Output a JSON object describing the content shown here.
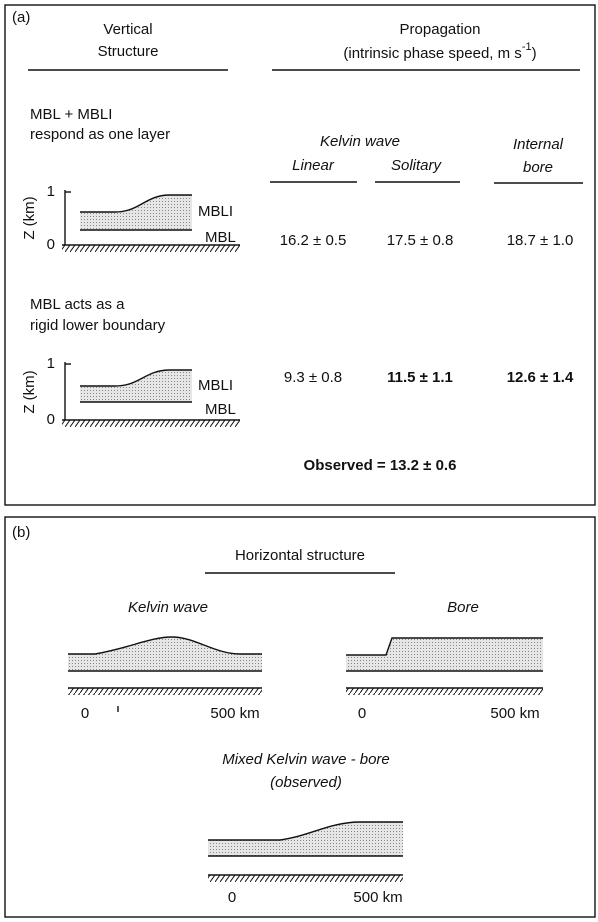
{
  "panel_a": {
    "label": "(a)",
    "vertical_structure": [
      "Vertical",
      "Structure"
    ],
    "propagation": {
      "title": "Propagation",
      "subtitle": "(intrinsic phase speed, m s",
      "exponent": "-1",
      "close": ")"
    },
    "column_headers": {
      "kelvin_wave": "Kelvin wave",
      "linear": "Linear",
      "solitary": "Solitary",
      "internal_bore": [
        "Internal",
        "bore"
      ]
    },
    "cases": [
      {
        "description": [
          "MBL + MBLI",
          "respond as one layer"
        ],
        "axis_label": "Z (km)",
        "ticks": [
          "1",
          "0"
        ],
        "layers": [
          "MBLI",
          "MBL"
        ],
        "speeds": [
          "16.2 ± 0.5",
          "17.5 ± 0.8",
          "18.7 ± 1.0"
        ]
      },
      {
        "description": [
          "MBL acts as a",
          "rigid lower boundary"
        ],
        "axis_label": "Z (km)",
        "ticks": [
          "1",
          "0"
        ],
        "layers": [
          "MBLI",
          "MBL"
        ],
        "speeds": [
          "9.3 ± 0.8",
          "11.5 ± 1.1",
          "12.6 ± 1.4"
        ]
      }
    ],
    "observed": "Observed = 13.2 ± 0.6"
  },
  "panel_b": {
    "label": "(b)",
    "title": "Horizontal structure",
    "diagrams": [
      {
        "title": [
          "Kelvin wave"
        ],
        "axis": [
          "0",
          "500 km"
        ]
      },
      {
        "title": [
          "Bore"
        ],
        "axis": [
          "0",
          "500 km"
        ]
      },
      {
        "title": [
          "Mixed Kelvin wave - bore",
          "(observed)"
        ],
        "axis": [
          "0",
          "500 km"
        ]
      }
    ]
  }
}
